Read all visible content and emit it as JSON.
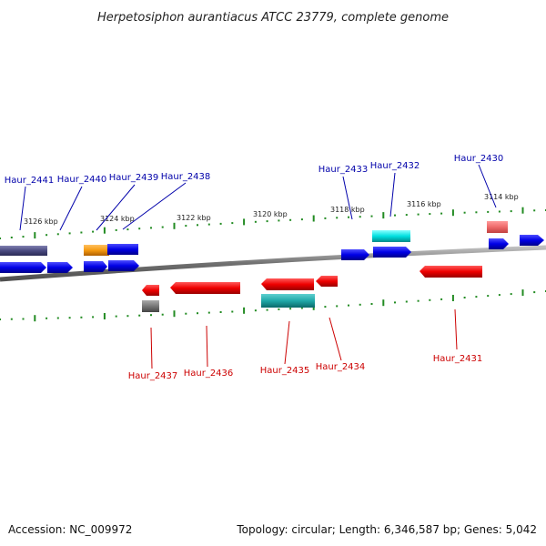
{
  "title": "Herpetosiphon aurantiacus ATCC 23779, complete genome",
  "footer": {
    "accession": "Accession: NC_009972",
    "summary": "Topology: circular; Length: 6,346,587 bp; Genes: 5,042"
  },
  "colors": {
    "plus_label": "#0000aa",
    "minus_label": "#cc0000",
    "tick": "#228b22",
    "backbone": "#888888"
  },
  "kbp_markers": [
    "3126 kbp",
    "3124 kbp",
    "3122 kbp",
    "3120 kbp",
    "3118 kbp",
    "3116 kbp",
    "3114 kbp"
  ],
  "genes_top": [
    "Haur_2441",
    "Haur_2440",
    "Haur_2439",
    "Haur_2438",
    "Haur_2433",
    "Haur_2432",
    "Haur_2430"
  ],
  "genes_bottom": [
    "Haur_2437",
    "Haur_2436",
    "Haur_2435",
    "Haur_2434",
    "Haur_2431"
  ]
}
